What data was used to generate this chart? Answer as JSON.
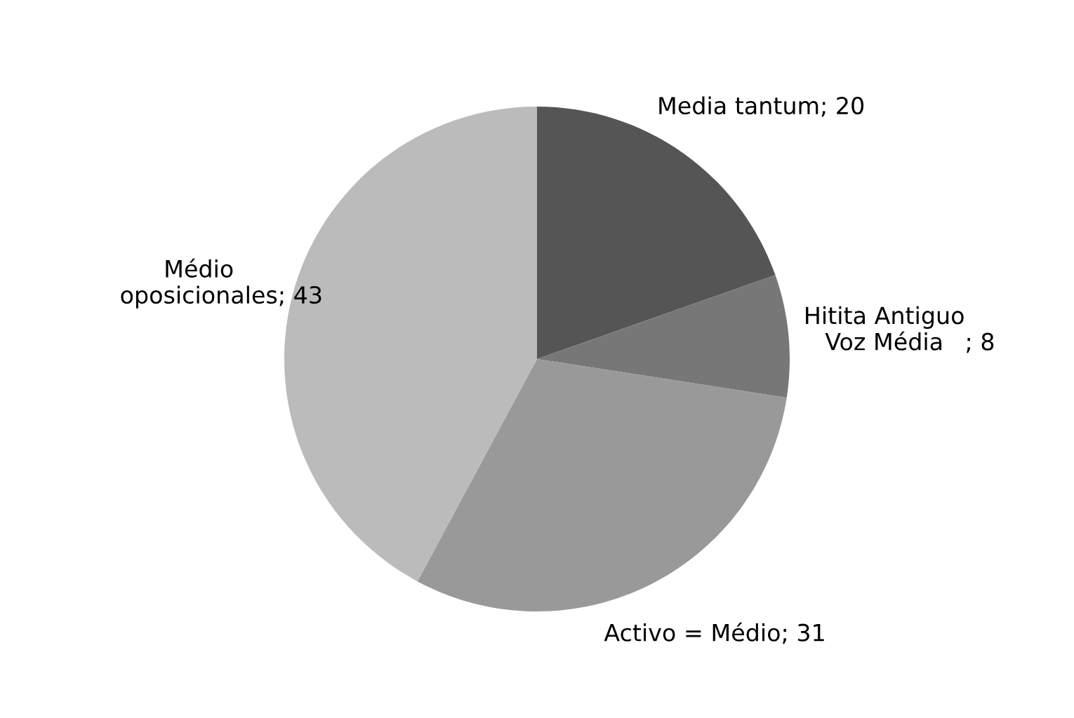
{
  "chart_data": {
    "type": "pie",
    "categories": [
      "Media tantum",
      "Hitita Antiguo Voz Média",
      "Activo = Médio",
      "Médio oposicionales"
    ],
    "values": [
      20,
      8,
      31,
      43
    ],
    "colors": [
      "#555555",
      "#777777",
      "#999999",
      "#bbbbbb"
    ],
    "value_labels": [
      "; 20",
      "; 8",
      "; 31",
      "; 43"
    ]
  }
}
